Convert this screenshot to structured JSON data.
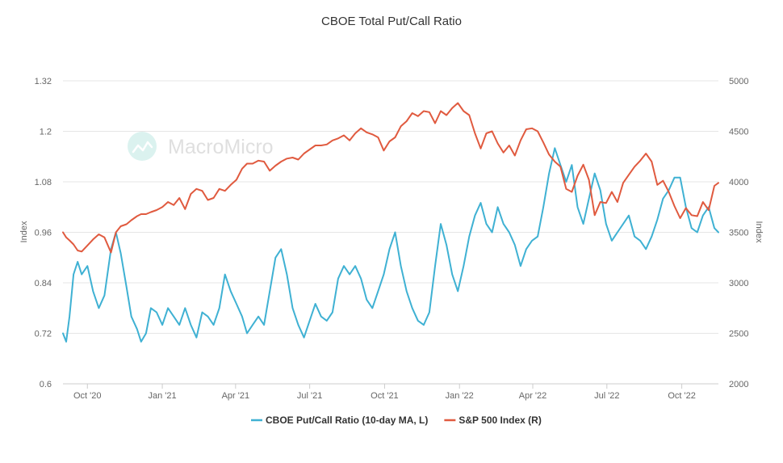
{
  "chart_data": {
    "type": "line",
    "title": "CBOE Total Put/Call Ratio",
    "xlabel": "",
    "ylabel_left": "Index",
    "ylabel_right": "Index",
    "x_range": [
      "2020-09-01",
      "2022-11-15"
    ],
    "x_ticks": [
      {
        "date": "2020-10-01",
        "label": "Oct '20"
      },
      {
        "date": "2021-01-01",
        "label": "Jan '21"
      },
      {
        "date": "2021-04-01",
        "label": "Apr '21"
      },
      {
        "date": "2021-07-01",
        "label": "Jul '21"
      },
      {
        "date": "2021-10-01",
        "label": "Oct '21"
      },
      {
        "date": "2022-01-01",
        "label": "Jan '22"
      },
      {
        "date": "2022-04-01",
        "label": "Apr '22"
      },
      {
        "date": "2022-07-01",
        "label": "Jul '22"
      },
      {
        "date": "2022-10-01",
        "label": "Oct '22"
      }
    ],
    "y_left": {
      "min": 0.6,
      "max": 1.32,
      "ticks": [
        0.6,
        0.72,
        0.84,
        0.96,
        1.08,
        1.2,
        1.32
      ]
    },
    "y_right": {
      "min": 2000,
      "max": 5000,
      "ticks": [
        2000,
        2500,
        3000,
        3500,
        4000,
        4500,
        5000
      ]
    },
    "grid": true,
    "legend_position": "bottom",
    "watermark": "MacroMicro",
    "series": [
      {
        "name": "CBOE Put/Call Ratio (10-day MA, L)",
        "axis": "left",
        "color": "#3fb1d3",
        "points": [
          [
            "2020-09-01",
            0.72
          ],
          [
            "2020-09-05",
            0.7
          ],
          [
            "2020-09-09",
            0.76
          ],
          [
            "2020-09-14",
            0.86
          ],
          [
            "2020-09-19",
            0.89
          ],
          [
            "2020-09-24",
            0.86
          ],
          [
            "2020-10-01",
            0.88
          ],
          [
            "2020-10-08",
            0.82
          ],
          [
            "2020-10-15",
            0.78
          ],
          [
            "2020-10-22",
            0.81
          ],
          [
            "2020-10-30",
            0.92
          ],
          [
            "2020-11-05",
            0.96
          ],
          [
            "2020-11-11",
            0.91
          ],
          [
            "2020-11-18",
            0.83
          ],
          [
            "2020-11-24",
            0.76
          ],
          [
            "2020-12-01",
            0.73
          ],
          [
            "2020-12-06",
            0.7
          ],
          [
            "2020-12-12",
            0.72
          ],
          [
            "2020-12-18",
            0.78
          ],
          [
            "2020-12-25",
            0.77
          ],
          [
            "2021-01-01",
            0.74
          ],
          [
            "2021-01-08",
            0.78
          ],
          [
            "2021-01-15",
            0.76
          ],
          [
            "2021-01-22",
            0.74
          ],
          [
            "2021-01-29",
            0.78
          ],
          [
            "2021-02-05",
            0.74
          ],
          [
            "2021-02-12",
            0.71
          ],
          [
            "2021-02-19",
            0.77
          ],
          [
            "2021-02-26",
            0.76
          ],
          [
            "2021-03-05",
            0.74
          ],
          [
            "2021-03-12",
            0.78
          ],
          [
            "2021-03-19",
            0.86
          ],
          [
            "2021-03-26",
            0.82
          ],
          [
            "2021-04-02",
            0.79
          ],
          [
            "2021-04-09",
            0.76
          ],
          [
            "2021-04-15",
            0.72
          ],
          [
            "2021-04-22",
            0.74
          ],
          [
            "2021-04-29",
            0.76
          ],
          [
            "2021-05-06",
            0.74
          ],
          [
            "2021-05-13",
            0.82
          ],
          [
            "2021-05-20",
            0.9
          ],
          [
            "2021-05-27",
            0.92
          ],
          [
            "2021-06-03",
            0.86
          ],
          [
            "2021-06-10",
            0.78
          ],
          [
            "2021-06-17",
            0.74
          ],
          [
            "2021-06-24",
            0.71
          ],
          [
            "2021-07-01",
            0.75
          ],
          [
            "2021-07-08",
            0.79
          ],
          [
            "2021-07-15",
            0.76
          ],
          [
            "2021-07-22",
            0.75
          ],
          [
            "2021-07-29",
            0.77
          ],
          [
            "2021-08-05",
            0.85
          ],
          [
            "2021-08-12",
            0.88
          ],
          [
            "2021-08-19",
            0.86
          ],
          [
            "2021-08-26",
            0.88
          ],
          [
            "2021-09-02",
            0.85
          ],
          [
            "2021-09-09",
            0.8
          ],
          [
            "2021-09-16",
            0.78
          ],
          [
            "2021-09-23",
            0.82
          ],
          [
            "2021-09-30",
            0.86
          ],
          [
            "2021-10-07",
            0.92
          ],
          [
            "2021-10-14",
            0.96
          ],
          [
            "2021-10-21",
            0.88
          ],
          [
            "2021-10-28",
            0.82
          ],
          [
            "2021-11-04",
            0.78
          ],
          [
            "2021-11-11",
            0.75
          ],
          [
            "2021-11-18",
            0.74
          ],
          [
            "2021-11-25",
            0.77
          ],
          [
            "2021-12-02",
            0.88
          ],
          [
            "2021-12-09",
            0.98
          ],
          [
            "2021-12-16",
            0.93
          ],
          [
            "2021-12-23",
            0.86
          ],
          [
            "2021-12-30",
            0.82
          ],
          [
            "2022-01-06",
            0.88
          ],
          [
            "2022-01-13",
            0.95
          ],
          [
            "2022-01-20",
            1.0
          ],
          [
            "2022-01-27",
            1.03
          ],
          [
            "2022-02-03",
            0.98
          ],
          [
            "2022-02-10",
            0.96
          ],
          [
            "2022-02-17",
            1.02
          ],
          [
            "2022-02-24",
            0.98
          ],
          [
            "2022-03-03",
            0.96
          ],
          [
            "2022-03-10",
            0.93
          ],
          [
            "2022-03-17",
            0.88
          ],
          [
            "2022-03-24",
            0.92
          ],
          [
            "2022-03-31",
            0.94
          ],
          [
            "2022-04-07",
            0.95
          ],
          [
            "2022-04-14",
            1.02
          ],
          [
            "2022-04-21",
            1.1
          ],
          [
            "2022-04-28",
            1.16
          ],
          [
            "2022-05-05",
            1.12
          ],
          [
            "2022-05-12",
            1.08
          ],
          [
            "2022-05-19",
            1.12
          ],
          [
            "2022-05-26",
            1.02
          ],
          [
            "2022-06-02",
            0.98
          ],
          [
            "2022-06-09",
            1.04
          ],
          [
            "2022-06-16",
            1.1
          ],
          [
            "2022-06-23",
            1.06
          ],
          [
            "2022-06-30",
            0.98
          ],
          [
            "2022-07-07",
            0.94
          ],
          [
            "2022-07-14",
            0.96
          ],
          [
            "2022-07-21",
            0.98
          ],
          [
            "2022-07-28",
            1.0
          ],
          [
            "2022-08-04",
            0.95
          ],
          [
            "2022-08-11",
            0.94
          ],
          [
            "2022-08-18",
            0.92
          ],
          [
            "2022-08-25",
            0.95
          ],
          [
            "2022-09-01",
            0.99
          ],
          [
            "2022-09-08",
            1.04
          ],
          [
            "2022-09-15",
            1.06
          ],
          [
            "2022-09-22",
            1.09
          ],
          [
            "2022-09-29",
            1.09
          ],
          [
            "2022-10-06",
            1.02
          ],
          [
            "2022-10-13",
            0.97
          ],
          [
            "2022-10-20",
            0.96
          ],
          [
            "2022-10-27",
            1.0
          ],
          [
            "2022-11-03",
            1.02
          ],
          [
            "2022-11-10",
            0.97
          ],
          [
            "2022-11-15",
            0.96
          ]
        ]
      },
      {
        "name": "S&P 500 Index (R)",
        "axis": "right",
        "color": "#e05a3f",
        "points": [
          [
            "2020-09-01",
            3500
          ],
          [
            "2020-09-05",
            3450
          ],
          [
            "2020-09-09",
            3420
          ],
          [
            "2020-09-14",
            3380
          ],
          [
            "2020-09-19",
            3320
          ],
          [
            "2020-09-24",
            3310
          ],
          [
            "2020-10-01",
            3370
          ],
          [
            "2020-10-08",
            3430
          ],
          [
            "2020-10-15",
            3480
          ],
          [
            "2020-10-22",
            3450
          ],
          [
            "2020-10-30",
            3300
          ],
          [
            "2020-11-05",
            3500
          ],
          [
            "2020-11-11",
            3560
          ],
          [
            "2020-11-18",
            3580
          ],
          [
            "2020-11-24",
            3620
          ],
          [
            "2020-12-01",
            3660
          ],
          [
            "2020-12-06",
            3680
          ],
          [
            "2020-12-12",
            3680
          ],
          [
            "2020-12-18",
            3700
          ],
          [
            "2020-12-25",
            3720
          ],
          [
            "2021-01-01",
            3750
          ],
          [
            "2021-01-08",
            3800
          ],
          [
            "2021-01-15",
            3770
          ],
          [
            "2021-01-22",
            3840
          ],
          [
            "2021-01-29",
            3730
          ],
          [
            "2021-02-05",
            3880
          ],
          [
            "2021-02-12",
            3930
          ],
          [
            "2021-02-19",
            3910
          ],
          [
            "2021-02-26",
            3820
          ],
          [
            "2021-03-05",
            3840
          ],
          [
            "2021-03-12",
            3930
          ],
          [
            "2021-03-19",
            3910
          ],
          [
            "2021-03-26",
            3970
          ],
          [
            "2021-04-02",
            4020
          ],
          [
            "2021-04-09",
            4130
          ],
          [
            "2021-04-15",
            4180
          ],
          [
            "2021-04-22",
            4180
          ],
          [
            "2021-04-29",
            4210
          ],
          [
            "2021-05-06",
            4200
          ],
          [
            "2021-05-13",
            4110
          ],
          [
            "2021-05-20",
            4160
          ],
          [
            "2021-05-27",
            4200
          ],
          [
            "2021-06-03",
            4230
          ],
          [
            "2021-06-10",
            4240
          ],
          [
            "2021-06-17",
            4220
          ],
          [
            "2021-06-24",
            4280
          ],
          [
            "2021-07-01",
            4320
          ],
          [
            "2021-07-08",
            4360
          ],
          [
            "2021-07-15",
            4360
          ],
          [
            "2021-07-22",
            4370
          ],
          [
            "2021-07-29",
            4410
          ],
          [
            "2021-08-05",
            4430
          ],
          [
            "2021-08-12",
            4460
          ],
          [
            "2021-08-19",
            4410
          ],
          [
            "2021-08-26",
            4480
          ],
          [
            "2021-09-02",
            4530
          ],
          [
            "2021-09-09",
            4490
          ],
          [
            "2021-09-16",
            4470
          ],
          [
            "2021-09-23",
            4440
          ],
          [
            "2021-09-30",
            4310
          ],
          [
            "2021-10-07",
            4400
          ],
          [
            "2021-10-14",
            4440
          ],
          [
            "2021-10-21",
            4550
          ],
          [
            "2021-10-28",
            4600
          ],
          [
            "2021-11-04",
            4680
          ],
          [
            "2021-11-11",
            4650
          ],
          [
            "2021-11-18",
            4700
          ],
          [
            "2021-11-25",
            4690
          ],
          [
            "2021-12-02",
            4580
          ],
          [
            "2021-12-09",
            4700
          ],
          [
            "2021-12-16",
            4660
          ],
          [
            "2021-12-23",
            4730
          ],
          [
            "2021-12-30",
            4780
          ],
          [
            "2022-01-06",
            4700
          ],
          [
            "2022-01-13",
            4660
          ],
          [
            "2022-01-20",
            4480
          ],
          [
            "2022-01-27",
            4330
          ],
          [
            "2022-02-03",
            4480
          ],
          [
            "2022-02-10",
            4500
          ],
          [
            "2022-02-17",
            4380
          ],
          [
            "2022-02-24",
            4290
          ],
          [
            "2022-03-03",
            4360
          ],
          [
            "2022-03-10",
            4260
          ],
          [
            "2022-03-17",
            4410
          ],
          [
            "2022-03-24",
            4520
          ],
          [
            "2022-03-31",
            4530
          ],
          [
            "2022-04-07",
            4500
          ],
          [
            "2022-04-14",
            4390
          ],
          [
            "2022-04-21",
            4270
          ],
          [
            "2022-04-28",
            4200
          ],
          [
            "2022-05-05",
            4150
          ],
          [
            "2022-05-12",
            3930
          ],
          [
            "2022-05-19",
            3900
          ],
          [
            "2022-05-26",
            4060
          ],
          [
            "2022-06-02",
            4170
          ],
          [
            "2022-06-09",
            4020
          ],
          [
            "2022-06-16",
            3670
          ],
          [
            "2022-06-23",
            3800
          ],
          [
            "2022-06-30",
            3790
          ],
          [
            "2022-07-07",
            3900
          ],
          [
            "2022-07-14",
            3800
          ],
          [
            "2022-07-21",
            3990
          ],
          [
            "2022-07-28",
            4070
          ],
          [
            "2022-08-04",
            4150
          ],
          [
            "2022-08-11",
            4210
          ],
          [
            "2022-08-18",
            4280
          ],
          [
            "2022-08-25",
            4200
          ],
          [
            "2022-09-01",
            3970
          ],
          [
            "2022-09-08",
            4010
          ],
          [
            "2022-09-15",
            3900
          ],
          [
            "2022-09-22",
            3760
          ],
          [
            "2022-09-29",
            3640
          ],
          [
            "2022-10-06",
            3740
          ],
          [
            "2022-10-13",
            3670
          ],
          [
            "2022-10-20",
            3660
          ],
          [
            "2022-10-27",
            3800
          ],
          [
            "2022-11-03",
            3720
          ],
          [
            "2022-11-10",
            3960
          ],
          [
            "2022-11-15",
            3990
          ]
        ]
      }
    ]
  }
}
